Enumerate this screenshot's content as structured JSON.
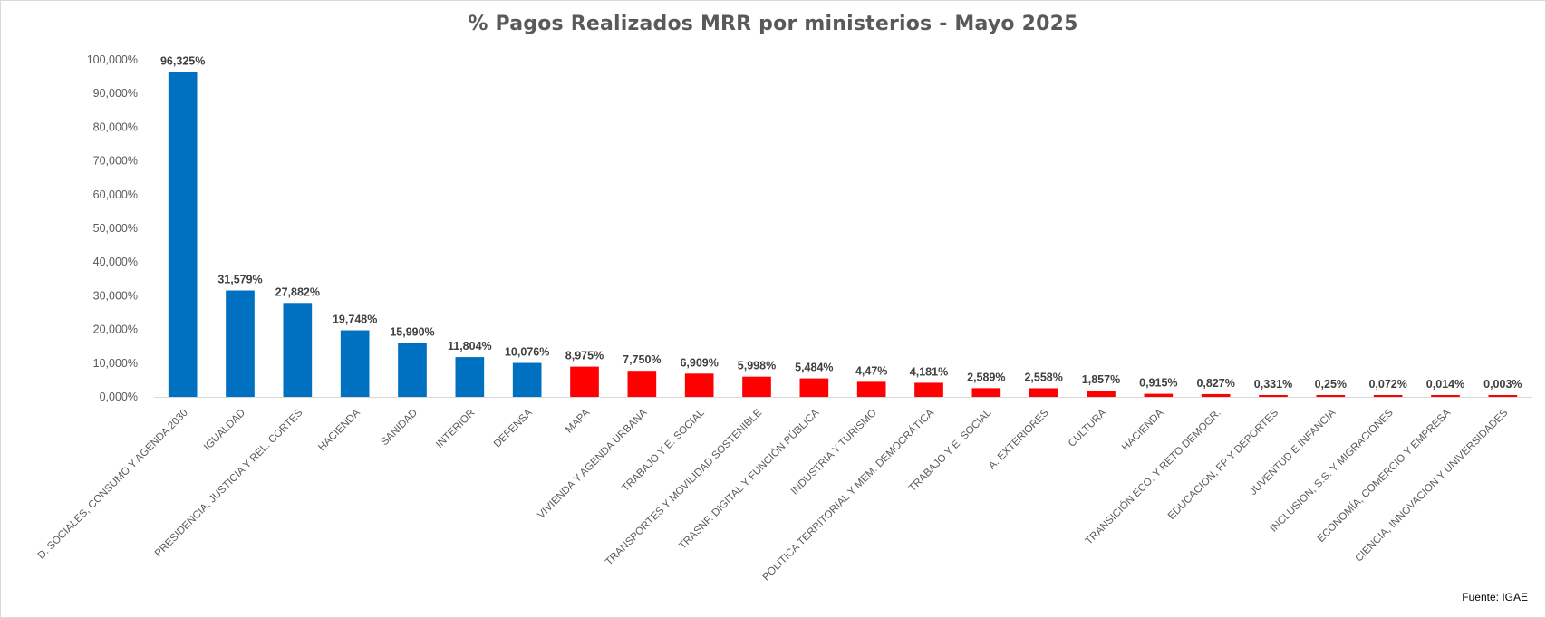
{
  "chart_data": {
    "type": "bar",
    "title": "% Pagos Realizados MRR por ministerios - Mayo 2025",
    "xlabel": "",
    "ylabel": "",
    "ylim": [
      0,
      100
    ],
    "y_ticks": [
      "0,000%",
      "10,000%",
      "20,000%",
      "30,000%",
      "40,000%",
      "50,000%",
      "60,000%",
      "70,000%",
      "80,000%",
      "90,000%",
      "100,000%"
    ],
    "y_tick_values": [
      0,
      10,
      20,
      30,
      40,
      50,
      60,
      70,
      80,
      90,
      100
    ],
    "grid": false,
    "legend": "none",
    "categories": [
      "D. SOCIALES, CONSUMO Y AGENDA 2030",
      "IGUALDAD",
      "PRESIDENCIA, JUSTICIA Y REL. CORTES",
      "HACIENDA",
      "SANIDAD",
      "INTERIOR",
      "DEFENSA",
      "MAPA",
      "VIVIENDA Y AGENDA URBANA",
      "TRABAJO Y E. SOCIAL",
      "TRANSPORTES Y MOVILIDAD SOSTENIBLE",
      "TRASNF. DIGITAL Y FUNCIÓN PÚBLICA",
      "INDUSTRIA Y TURISMO",
      "POLITICA TERRITORIAL Y MEM. DEMOCRÁTICA",
      "TRABAJO Y E. SOCIAL",
      "A. EXTERIORES",
      "CULTURA",
      "HACIENDA",
      "TRANSICIÓN ECO. Y RETO DEMOGR.",
      "EDUCACION, FP Y DEPORTES",
      "JUVENTUD E INFANCIA",
      "INCLUSION, S.S. Y MIGRACIONES",
      "ECONOMÍA, COMERCIO Y EMPRESA",
      "CIENCIA, INNOVACION Y UNIVERSIDADES"
    ],
    "values": [
      96.325,
      31.579,
      27.882,
      19.748,
      15.99,
      11.804,
      10.076,
      8.975,
      7.75,
      6.909,
      5.998,
      5.484,
      4.47,
      4.181,
      2.589,
      2.558,
      1.857,
      0.915,
      0.827,
      0.331,
      0.25,
      0.072,
      0.014,
      0.003
    ],
    "data_labels": [
      "96,325%",
      "31,579%",
      "27,882%",
      "19,748%",
      "15,990%",
      "11,804%",
      "10,076%",
      "8,975%",
      "7,750%",
      "6,909%",
      "5,998%",
      "5,484%",
      "4,47%",
      "4,181%",
      "2,589%",
      "2,558%",
      "1,857%",
      "0,915%",
      "0,827%",
      "0,331%",
      "0,25%",
      "0,072%",
      "0,014%",
      "0,003%"
    ],
    "bar_colors": [
      "#0070C0",
      "#0070C0",
      "#0070C0",
      "#0070C0",
      "#0070C0",
      "#0070C0",
      "#0070C0",
      "#FF0000",
      "#FF0000",
      "#FF0000",
      "#FF0000",
      "#FF0000",
      "#FF0000",
      "#FF0000",
      "#FF0000",
      "#FF0000",
      "#FF0000",
      "#FF0000",
      "#FF0000",
      "#FF0000",
      "#FF0000",
      "#FF0000",
      "#FF0000",
      "#FF0000"
    ],
    "axis_color": "#d9d9d9"
  },
  "source_note": "Fuente: IGAE"
}
